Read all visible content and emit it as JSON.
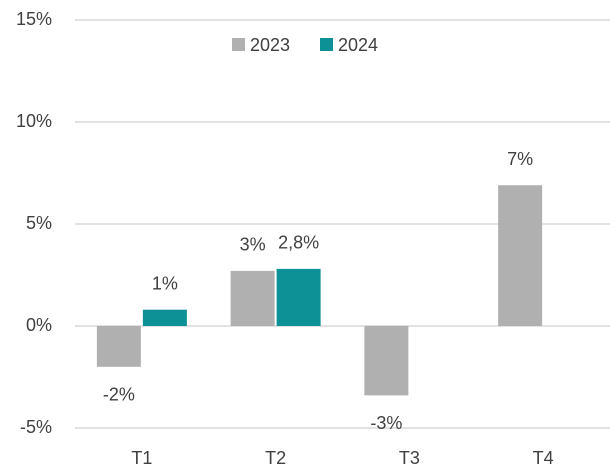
{
  "chart_data": {
    "type": "bar",
    "categories": [
      "T1",
      "T2",
      "T3",
      "T4"
    ],
    "series": [
      {
        "name": "2023",
        "color": "#b0b0b0",
        "values": [
          -2,
          2.7,
          -3.4,
          6.9
        ],
        "value_labels": [
          "-2%",
          "3%",
          "-3%",
          "7%"
        ]
      },
      {
        "name": "2024",
        "color": "#0e9097",
        "values": [
          0.8,
          2.8,
          null,
          null
        ],
        "value_labels": [
          "1%",
          "2,8%",
          null,
          null
        ]
      }
    ],
    "ylim": [
      -5,
      15
    ],
    "yticks": [
      {
        "value": -5,
        "label": "-5%"
      },
      {
        "value": 0,
        "label": "0%"
      },
      {
        "value": 5,
        "label": "5%"
      },
      {
        "value": 10,
        "label": "10%"
      },
      {
        "value": 15,
        "label": "15%"
      }
    ],
    "grid": true,
    "legend": "top"
  }
}
